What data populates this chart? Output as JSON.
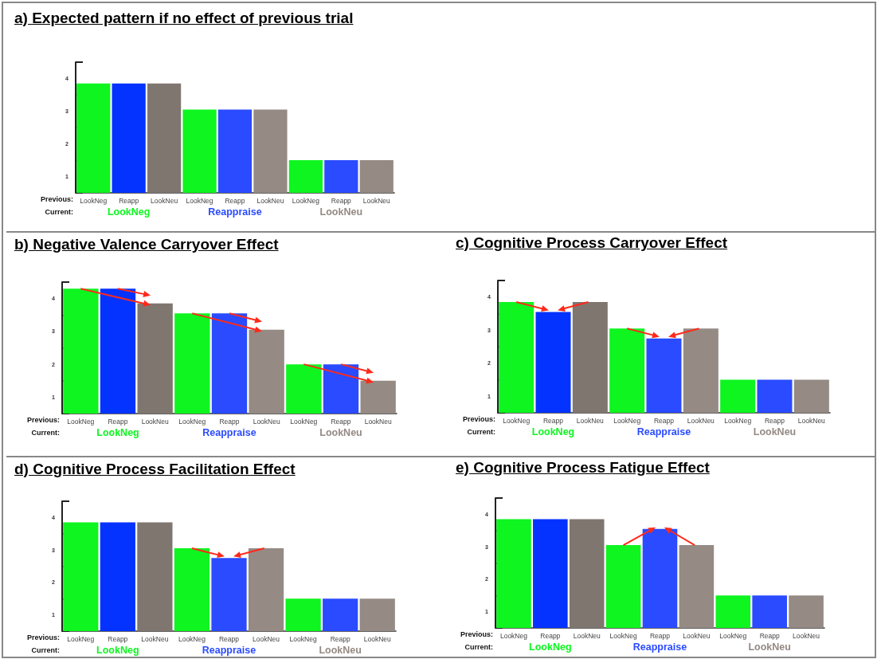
{
  "chart_data": [
    {
      "type": "bar",
      "title": "a) Expected pattern if no effect of previous trial",
      "categories": [
        "LookNeg",
        "Reapp",
        "LookNeu",
        "LookNeg",
        "Reapp",
        "LookNeu",
        "LookNeg",
        "Reapp",
        "LookNeu"
      ],
      "values": [
        3.35,
        3.35,
        3.35,
        2.55,
        2.55,
        2.55,
        1.0,
        1.0,
        1.0
      ],
      "colors": [
        "#0ef520",
        "#0433ff",
        "#807670",
        "#0ef520",
        "#2a4bff",
        "#958a84",
        "#0ef520",
        "#2a4bff",
        "#958a84"
      ],
      "ylim": [
        0,
        4
      ],
      "yticks": [
        {
          "value": 0,
          "label": null
        },
        {
          "value": 0.5,
          "label": "1"
        },
        {
          "value": 1,
          "label": null
        },
        {
          "value": 1.5,
          "label": "2"
        },
        {
          "value": 2,
          "label": null
        },
        {
          "value": 2.5,
          "label": "3"
        },
        {
          "value": 3,
          "label": null
        },
        {
          "value": 3.5,
          "label": "4"
        },
        {
          "value": 4,
          "label": null
        }
      ],
      "annotations": [
        "Previous:",
        "Current:",
        "LookNeg",
        "Reappraise",
        "LookNeu"
      ]
    },
    {
      "type": "bar",
      "title": "b) Negative Valence Carryover Effect",
      "categories": [
        "LookNeg",
        "Reapp",
        "LookNeu",
        "LookNeg",
        "Reapp",
        "LookNeu",
        "LookNeg",
        "Reapp",
        "LookNeu"
      ],
      "values": [
        3.8,
        3.8,
        3.35,
        3.05,
        3.05,
        2.55,
        1.5,
        1.5,
        1.0
      ],
      "colors": [
        "#0ef520",
        "#0433ff",
        "#807670",
        "#0ef520",
        "#2a4bff",
        "#958a84",
        "#0ef520",
        "#2a4bff",
        "#958a84"
      ],
      "ylim": [
        0,
        4
      ],
      "yticks": [
        {
          "value": 0,
          "label": null
        },
        {
          "value": 0.5,
          "label": "1"
        },
        {
          "value": 1,
          "label": null
        },
        {
          "value": 1.5,
          "label": "2"
        },
        {
          "value": 2,
          "label": null
        },
        {
          "value": 2.5,
          "label": "3"
        },
        {
          "value": 3,
          "label": null
        },
        {
          "value": 3.5,
          "label": "4"
        },
        {
          "value": 4,
          "label": null
        }
      ],
      "annotations": [
        "Previous:",
        "Current:",
        "LookNeg",
        "Reappraise",
        "LookNeu"
      ]
    },
    {
      "type": "bar",
      "title": "c) Cognitive Process Carryover Effect",
      "categories": [
        "LookNeg",
        "Reapp",
        "LookNeu",
        "LookNeg",
        "Reapp",
        "LookNeu",
        "LookNeg",
        "Reapp",
        "LookNeu"
      ],
      "values": [
        3.35,
        3.05,
        3.35,
        2.55,
        2.25,
        2.55,
        1.0,
        1.0,
        1.0
      ],
      "colors": [
        "#0ef520",
        "#0433ff",
        "#807670",
        "#0ef520",
        "#2a4bff",
        "#958a84",
        "#0ef520",
        "#2a4bff",
        "#958a84"
      ],
      "ylim": [
        0,
        4
      ],
      "yticks": [
        {
          "value": 0,
          "label": null
        },
        {
          "value": 0.5,
          "label": "1"
        },
        {
          "value": 1,
          "label": null
        },
        {
          "value": 1.5,
          "label": "2"
        },
        {
          "value": 2,
          "label": null
        },
        {
          "value": 2.5,
          "label": "3"
        },
        {
          "value": 3,
          "label": null
        },
        {
          "value": 3.5,
          "label": "4"
        },
        {
          "value": 4,
          "label": null
        }
      ],
      "annotations": [
        "Previous:",
        "Current:",
        "LookNeg",
        "Reappraise",
        "LookNeu"
      ]
    },
    {
      "type": "bar",
      "title": "d) Cognitive Process Facilitation Effect",
      "categories": [
        "LookNeg",
        "Reapp",
        "LookNeu",
        "LookNeg",
        "Reapp",
        "LookNeu",
        "LookNeg",
        "Reapp",
        "LookNeu"
      ],
      "values": [
        3.35,
        3.35,
        3.35,
        2.55,
        2.25,
        2.55,
        1.0,
        1.0,
        1.0
      ],
      "colors": [
        "#0ef520",
        "#0433ff",
        "#807670",
        "#0ef520",
        "#2a4bff",
        "#958a84",
        "#0ef520",
        "#2a4bff",
        "#958a84"
      ],
      "ylim": [
        0,
        4
      ],
      "yticks": [
        {
          "value": 0,
          "label": null
        },
        {
          "value": 0.5,
          "label": "1"
        },
        {
          "value": 1,
          "label": null
        },
        {
          "value": 1.5,
          "label": "2"
        },
        {
          "value": 2,
          "label": null
        },
        {
          "value": 2.5,
          "label": "3"
        },
        {
          "value": 3,
          "label": null
        },
        {
          "value": 3.5,
          "label": "4"
        },
        {
          "value": 4,
          "label": null
        }
      ],
      "annotations": [
        "Previous:",
        "Current:",
        "LookNeg",
        "Reappraise",
        "LookNeu"
      ]
    },
    {
      "type": "bar",
      "title": "e) Cognitive Process Fatigue Effect",
      "categories": [
        "LookNeg",
        "Reapp",
        "LookNeu",
        "LookNeg",
        "Reapp",
        "LookNeu",
        "LookNeg",
        "Reapp",
        "LookNeu"
      ],
      "values": [
        3.35,
        3.35,
        3.35,
        2.55,
        3.05,
        2.55,
        1.0,
        1.0,
        1.0
      ],
      "colors": [
        "#0ef520",
        "#0433ff",
        "#807670",
        "#0ef520",
        "#2a4bff",
        "#958a84",
        "#0ef520",
        "#2a4bff",
        "#958a84"
      ],
      "ylim": [
        0,
        4
      ],
      "yticks": [
        {
          "value": 0,
          "label": null
        },
        {
          "value": 0.5,
          "label": "1"
        },
        {
          "value": 1,
          "label": null
        },
        {
          "value": 1.5,
          "label": "2"
        },
        {
          "value": 2,
          "label": null
        },
        {
          "value": 2.5,
          "label": "3"
        },
        {
          "value": 3,
          "label": null
        },
        {
          "value": 3.5,
          "label": "4"
        },
        {
          "value": 4,
          "label": null
        }
      ],
      "annotations": [
        "Previous:",
        "Current:",
        "LookNeg",
        "Reappraise",
        "LookNeu"
      ]
    }
  ]
}
